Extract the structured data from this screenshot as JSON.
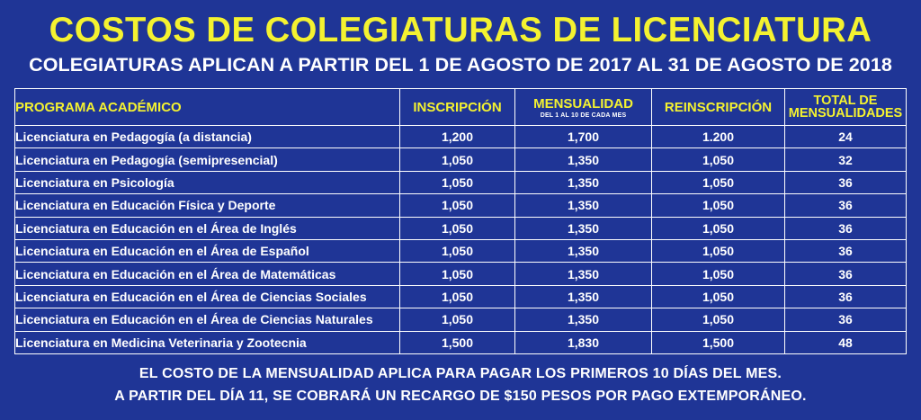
{
  "title": "COSTOS DE COLEGIATURAS DE LICENCIATURA",
  "subtitle": "COLEGIATURAS APLICAN A PARTIR DEL 1 DE AGOSTO DE 2017 AL 31 DE AGOSTO DE 2018",
  "table": {
    "headers": {
      "program": "PROGRAMA ACADÉMICO",
      "inscription": "INSCRIPCIÓN",
      "monthly": "MENSUALIDAD",
      "monthly_note": "DEL 1 AL 10 DE CADA MES",
      "reinscription": "REINSCRIPCIÓN",
      "total_line1": "TOTAL DE",
      "total_line2": "MENSUALIDADES"
    },
    "rows": [
      {
        "program": "Licenciatura en Pedagogía (a distancia)",
        "inscription": "1,200",
        "monthly": "1,700",
        "reinscription": "1.200",
        "total": "24"
      },
      {
        "program": "Licenciatura en Pedagogía (semipresencial)",
        "inscription": "1,050",
        "monthly": "1,350",
        "reinscription": "1,050",
        "total": "32"
      },
      {
        "program": "Licenciatura en Psicología",
        "inscription": "1,050",
        "monthly": "1,350",
        "reinscription": "1,050",
        "total": "36"
      },
      {
        "program": "Licenciatura en Educación Física y Deporte",
        "inscription": "1,050",
        "monthly": "1,350",
        "reinscription": "1,050",
        "total": "36"
      },
      {
        "program": "Licenciatura en Educación en el Área de Inglés",
        "inscription": "1,050",
        "monthly": "1,350",
        "reinscription": "1,050",
        "total": "36"
      },
      {
        "program": "Licenciatura en Educación en el Área de Español",
        "inscription": "1,050",
        "monthly": "1,350",
        "reinscription": "1,050",
        "total": "36"
      },
      {
        "program": "Licenciatura en Educación en el Área de Matemáticas",
        "inscription": "1,050",
        "monthly": "1,350",
        "reinscription": "1,050",
        "total": "36"
      },
      {
        "program": "Licenciatura en Educación en el Área de Ciencias Sociales",
        "inscription": "1,050",
        "monthly": "1,350",
        "reinscription": "1,050",
        "total": "36"
      },
      {
        "program": "Licenciatura en Educación en el Área de Ciencias Naturales",
        "inscription": "1,050",
        "monthly": "1,350",
        "reinscription": "1,050",
        "total": "36"
      },
      {
        "program": "Licenciatura en Medicina Veterinaria y Zootecnia",
        "inscription": "1,500",
        "monthly": "1,830",
        "reinscription": "1,500",
        "total": "48"
      }
    ]
  },
  "notes": {
    "line1": "EL COSTO DE LA MENSUALIDAD APLICA PARA PAGAR LOS PRIMEROS 10 DÍAS DEL MES.",
    "line2": "A PARTIR DEL DÍA 11, SE COBRARÁ UN RECARGO DE $150 PESOS POR PAGO EXTEMPORÁNEO."
  },
  "colors": {
    "background": "#1f3596",
    "title": "#f4f230",
    "text": "#ffffff",
    "grid": "#ffffff"
  }
}
